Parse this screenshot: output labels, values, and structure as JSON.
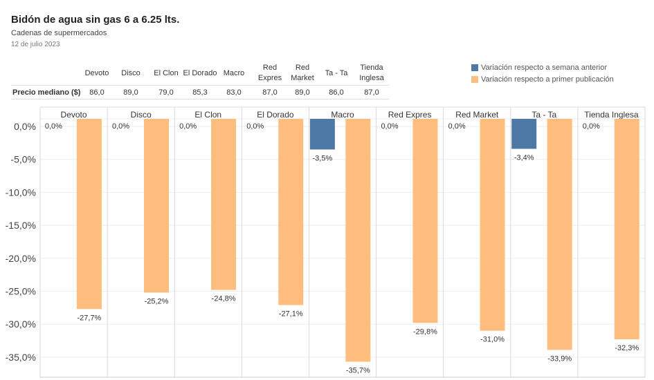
{
  "header": {
    "title": "Bidón de agua sin gas 6 a 6.25 lts.",
    "subtitle": "Cadenas de supermercados",
    "date": "12 de julio 2023"
  },
  "legend": [
    {
      "label": "Variación respecto a semana anterior",
      "color": "#4e79a7"
    },
    {
      "label": "Variación respecto a primer publicación",
      "color": "#ffbe7d"
    }
  ],
  "price_table": {
    "row_label": "Precio mediano ($)",
    "headers": [
      [
        "Devoto"
      ],
      [
        "Disco"
      ],
      [
        "El Clon"
      ],
      [
        "El Dorado"
      ],
      [
        "Macro"
      ],
      [
        "Red",
        "Expres"
      ],
      [
        "Red",
        "Market"
      ],
      [
        "Ta - Ta"
      ],
      [
        "Tienda",
        "Inglesa"
      ]
    ],
    "values": [
      "86,0",
      "89,0",
      "79,0",
      "85,3",
      "83,0",
      "87,0",
      "89,0",
      "86,0",
      "87,0"
    ]
  },
  "chart_data": {
    "type": "bar",
    "title": "Bidón de agua sin gas 6 a 6.25 lts.",
    "categories": [
      "Devoto",
      "Disco",
      "El Clon",
      "El Dorado",
      "Macro",
      "Red Expres",
      "Red Market",
      "Ta - Ta",
      "Tienda Inglesa"
    ],
    "series": [
      {
        "name": "Variación respecto a semana anterior",
        "color": "#4e79a7",
        "values": [
          0.0,
          0.0,
          0.0,
          0.0,
          -3.5,
          0.0,
          0.0,
          -3.4,
          0.0
        ],
        "labels": [
          "0,0%",
          "0,0%",
          "0,0%",
          "0,0%",
          "-3,5%",
          "0,0%",
          "0,0%",
          "-3,4%",
          "0,0%"
        ]
      },
      {
        "name": "Variación respecto a primer publicación",
        "color": "#ffbe7d",
        "values": [
          -27.7,
          -25.2,
          -24.8,
          -27.1,
          -35.7,
          -29.8,
          -31.0,
          -33.9,
          -32.3
        ],
        "labels": [
          "-27,7%",
          "-25,2%",
          "-24,8%",
          "-27,1%",
          "-35,7%",
          "-29,8%",
          "-31,0%",
          "-33,9%",
          "-32,3%"
        ]
      }
    ],
    "y_ticks": [
      0,
      -5,
      -10,
      -15,
      -20,
      -25,
      -30,
      -35
    ],
    "y_tick_labels": [
      "0,0%",
      "-5,0%",
      "-10,0%",
      "-15,0%",
      "-20,0%",
      "-25,0%",
      "-30,0%",
      "-35,0%"
    ],
    "ylim": [
      -39.5,
      1.5
    ],
    "grid": true
  }
}
